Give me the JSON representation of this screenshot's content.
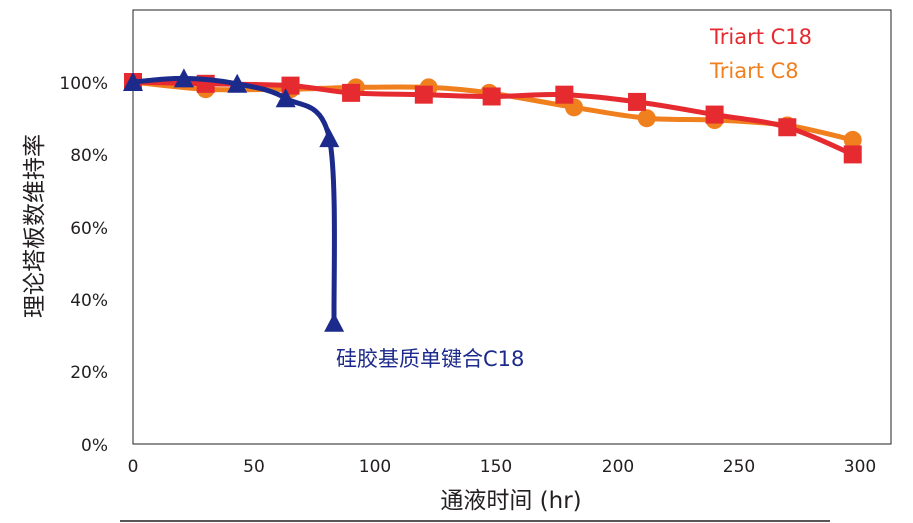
{
  "chart_data": {
    "type": "line",
    "xlabel": "通液时间 (hr)",
    "ylabel": "理论塔板数维持率",
    "xlim": [
      0,
      300
    ],
    "ylim": [
      0,
      100
    ],
    "x_ticks": [
      "0",
      "50",
      "100",
      "150",
      "200",
      "250",
      "300"
    ],
    "y_ticks": [
      "0%",
      "20%",
      "40%",
      "60%",
      "80%",
      "100%"
    ],
    "grid": false,
    "legend_placement": "top-right",
    "series": [
      {
        "name": "Triart C18",
        "color": "#e52a30",
        "marker": "square",
        "x": [
          0,
          30,
          65,
          90,
          120,
          148,
          178,
          208,
          240,
          270,
          297
        ],
        "y": [
          100,
          99.5,
          99,
          97,
          96.5,
          96,
          96.5,
          94.5,
          91,
          87.5,
          80
        ]
      },
      {
        "name": "Triart C8",
        "color": "#f07f1d",
        "marker": "circle",
        "x": [
          0,
          30,
          65,
          92,
          122,
          147,
          182,
          212,
          240,
          270,
          297
        ],
        "y": [
          100,
          98,
          98,
          98.5,
          98.5,
          97,
          93,
          90,
          89.5,
          88,
          84
        ]
      },
      {
        "name": "硅胶基质单键合C18",
        "color": "#1c2a8c",
        "marker": "triangle",
        "x": [
          0,
          21,
          43,
          63,
          81,
          83
        ],
        "y": [
          100,
          101,
          99.5,
          95.5,
          84.5,
          33.5
        ]
      }
    ]
  }
}
